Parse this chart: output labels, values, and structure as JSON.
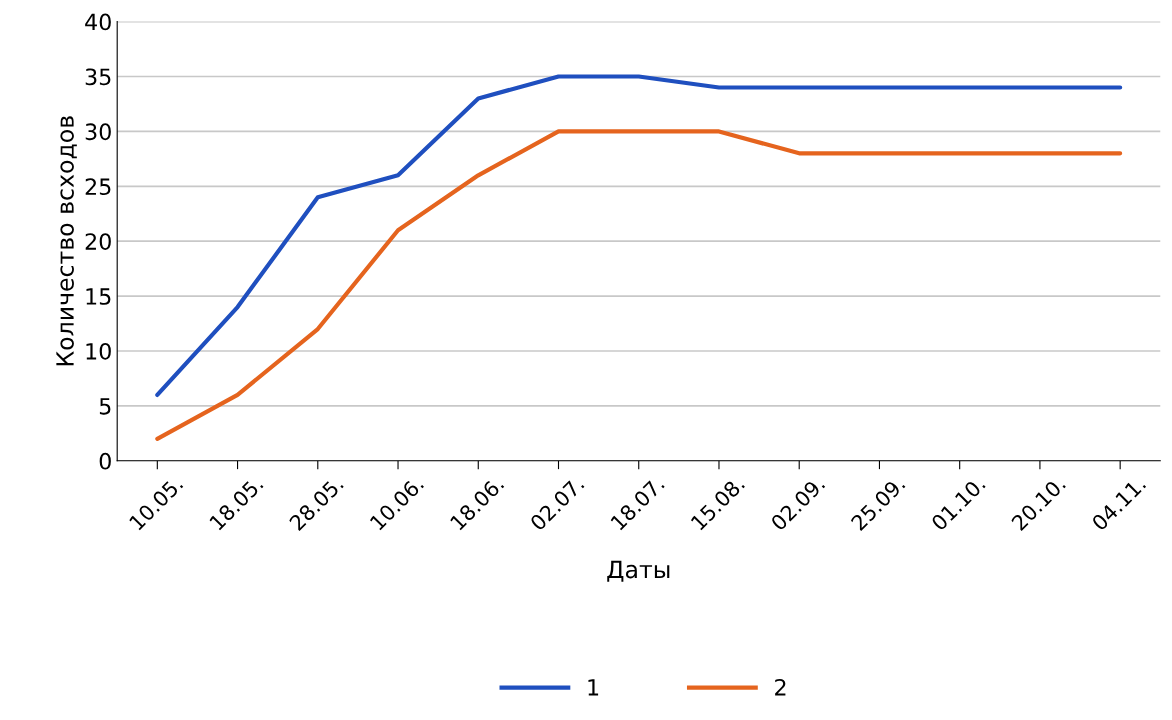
{
  "chart_data": {
    "type": "line",
    "xlabel": "Даты",
    "ylabel": "Количество всходов",
    "categories": [
      "10.05.",
      "18.05.",
      "28.05.",
      "10.06.",
      "18.06.",
      "02.07.",
      "18.07.",
      "15.08.",
      "02.09.",
      "25.09.",
      "01.10.",
      "20.10.",
      "04.11."
    ],
    "series": [
      {
        "name": "1",
        "color": "#1f4fbf",
        "values": [
          6,
          14,
          24,
          26,
          33,
          35,
          35,
          34,
          34,
          34,
          34,
          34,
          34
        ]
      },
      {
        "name": "2",
        "color": "#e5641e",
        "values": [
          2,
          6,
          12,
          21,
          26,
          30,
          30,
          30,
          28,
          28,
          28,
          28,
          28
        ]
      }
    ],
    "ylim": [
      0,
      40
    ],
    "yticks": [
      0,
      5,
      10,
      15,
      20,
      25,
      30,
      35,
      40
    ],
    "grid": "y",
    "legend": "bottom",
    "marker": "none",
    "line_style": "solid"
  }
}
